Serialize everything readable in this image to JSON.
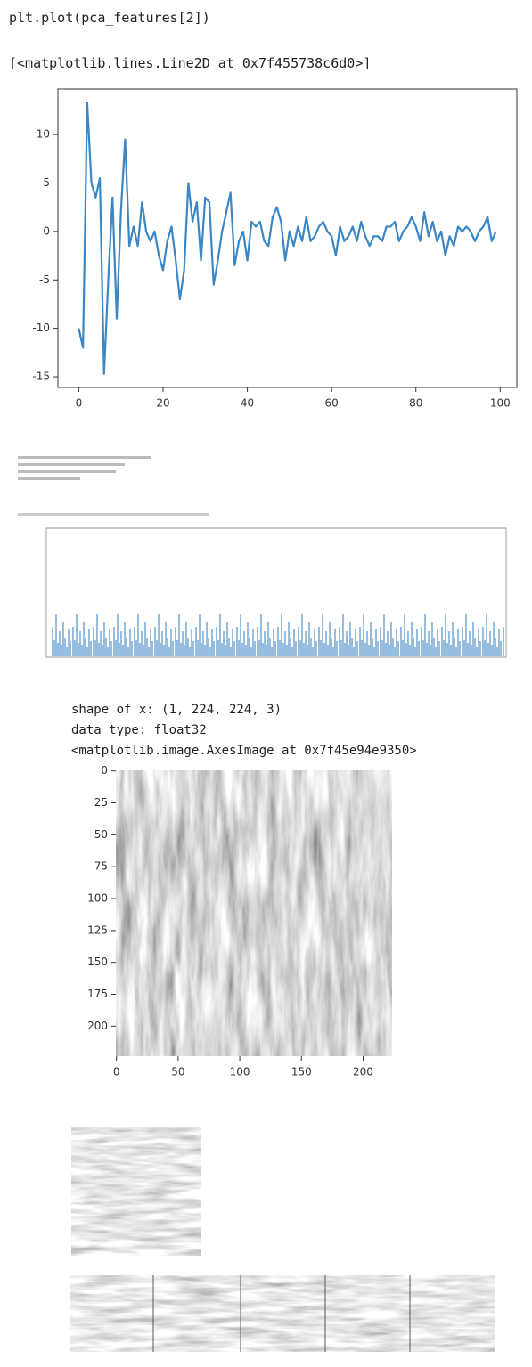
{
  "code": "plt.plot(pca_features[2])",
  "output": "[<matplotlib.lines.Line2D at 0x7f455738c6d0>]",
  "chart_data": {
    "type": "line",
    "color": "#3b86c4",
    "x": [
      0,
      1,
      2,
      3,
      4,
      5,
      6,
      7,
      8,
      9,
      10,
      11,
      12,
      13,
      14,
      15,
      16,
      17,
      18,
      19,
      20,
      21,
      22,
      23,
      24,
      25,
      26,
      27,
      28,
      29,
      30,
      31,
      32,
      33,
      34,
      35,
      36,
      37,
      38,
      39,
      40,
      41,
      42,
      43,
      44,
      45,
      46,
      47,
      48,
      49,
      50,
      51,
      52,
      53,
      54,
      55,
      56,
      57,
      58,
      59,
      60,
      61,
      62,
      63,
      64,
      65,
      66,
      67,
      68,
      69,
      70,
      71,
      72,
      73,
      74,
      75,
      76,
      77,
      78,
      79,
      80,
      81,
      82,
      83,
      84,
      85,
      86,
      87,
      88,
      89,
      90,
      91,
      92,
      93,
      94,
      95,
      96,
      97,
      98,
      99
    ],
    "values": [
      -10,
      -12,
      13.3,
      5,
      3.5,
      5.5,
      -14.7,
      -5,
      3.5,
      -9,
      2,
      9.5,
      -1.5,
      0.5,
      -1.5,
      3,
      0,
      -1,
      0,
      -2.5,
      -4,
      -1,
      0.5,
      -3,
      -7,
      -4,
      5,
      1,
      3,
      -3,
      3.5,
      3,
      -5.5,
      -3,
      0,
      2,
      4,
      -3.5,
      -1,
      0,
      -3,
      1,
      0.5,
      1,
      -1,
      -1.5,
      1.5,
      2.5,
      1,
      -3,
      0,
      -1.5,
      0.5,
      -1,
      1.5,
      -1,
      -0.5,
      0.5,
      1,
      0,
      -0.5,
      -2.5,
      0.5,
      -1,
      -0.5,
      0.5,
      -1,
      1,
      -0.5,
      -1.5,
      -0.5,
      -0.5,
      -1,
      0.5,
      0.5,
      1,
      -1,
      0,
      0.5,
      1.5,
      0.5,
      -1,
      2,
      -0.5,
      1,
      -1,
      0,
      -2.5,
      -0.5,
      -1.5,
      0.5,
      0,
      0.5,
      0,
      -1,
      0,
      0.5,
      1.5,
      -1,
      0
    ],
    "xlim": [
      -4.95,
      103.95
    ],
    "xticks": [
      0,
      20,
      40,
      60,
      80,
      100
    ],
    "ylim": [
      -16.1,
      14.7
    ],
    "yticks": [
      -15,
      -10,
      -5,
      0,
      5,
      10
    ]
  },
  "image_output": {
    "lines": [
      "shape of x:  (1, 224, 224, 3)",
      "data type:  float32",
      "<matplotlib.image.AxesImage at 0x7f45e94e9350>"
    ],
    "xlim": [
      -0.5,
      223.5
    ],
    "xticks": [
      0,
      50,
      100,
      150,
      200
    ],
    "ylim": [
      223.5,
      -0.5
    ],
    "yticks": [
      0,
      25,
      50,
      75,
      100,
      125,
      150,
      175,
      200
    ]
  }
}
